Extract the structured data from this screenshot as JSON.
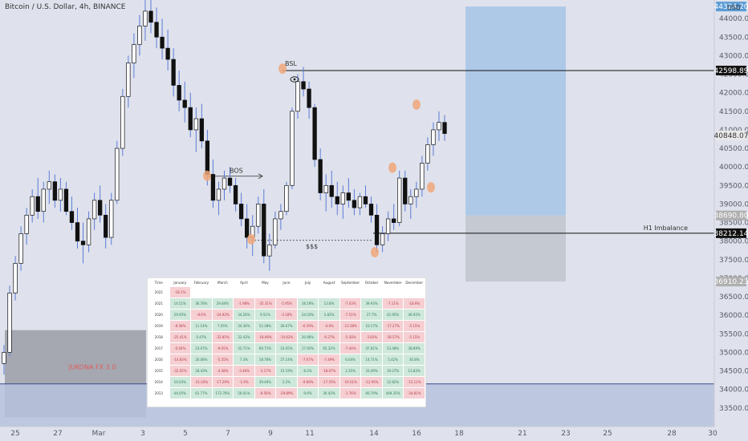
{
  "header": {
    "title": "Bitcoin / U.S. Dollar, 4h, BINANCE",
    "currency": "USD"
  },
  "watermark": "JUKONA FX 3.0",
  "chart_data": {
    "type": "candlestick",
    "ylim": [
      33000,
      44500
    ],
    "x_ticks": [
      "25",
      "27",
      "Mar",
      "3",
      "5",
      "7",
      "9",
      "11",
      "14",
      "16",
      "18",
      "21",
      "23",
      "25",
      "28",
      "30"
    ],
    "y_ticks": [
      33500,
      34000,
      34500,
      35000,
      35500,
      36000,
      36500,
      37000,
      37500,
      38000,
      38500,
      39000,
      39500,
      40000,
      40500,
      41000,
      41500,
      42000,
      42500,
      43000,
      43500,
      44000
    ],
    "price_badges": [
      {
        "value": "44324.20",
        "color": "#5b9bd5"
      },
      {
        "value": "42598.89",
        "color": "#111111"
      },
      {
        "value": "40848.07",
        "color": "#e8e8e8"
      },
      {
        "value": "38690.80",
        "color": "#b0b0b0"
      },
      {
        "value": "38212.14",
        "color": "#111111"
      },
      {
        "value": "36910.23",
        "color": "#b0b0b0"
      }
    ],
    "annotations": {
      "bsl": "BSL",
      "bos": "BOS",
      "sss": "$$$",
      "h1_imbalance": "H1 Imbalance"
    },
    "levels": {
      "bsl_line": 42598.89,
      "imbalance_line": 38212.14,
      "sss_line": 38020,
      "bos_level": 39750
    },
    "zones": [
      {
        "name": "target-zone",
        "from": 38690.8,
        "to": 44324.2,
        "color": "#a9c7e8"
      },
      {
        "name": "stop-zone",
        "from": 36910.23,
        "to": 38690.8,
        "color": "#c2c6cf"
      },
      {
        "name": "demand-zone",
        "from": 33250,
        "to": 35600,
        "color": "#9ea2ab"
      }
    ],
    "candles": [
      [
        34700,
        35200,
        34400,
        35000
      ],
      [
        35000,
        36800,
        34900,
        36600
      ],
      [
        36600,
        37600,
        36400,
        37400
      ],
      [
        37400,
        38400,
        37200,
        38200
      ],
      [
        38200,
        38900,
        37900,
        38700
      ],
      [
        38700,
        39400,
        38500,
        39200
      ],
      [
        39200,
        39700,
        38600,
        38800
      ],
      [
        38800,
        39600,
        38500,
        39400
      ],
      [
        39400,
        39900,
        39000,
        39600
      ],
      [
        39600,
        39800,
        38900,
        39100
      ],
      [
        39100,
        39700,
        38800,
        39400
      ],
      [
        39400,
        39600,
        38700,
        38800
      ],
      [
        38800,
        39200,
        38300,
        38500
      ],
      [
        38500,
        38900,
        37800,
        38000
      ],
      [
        38000,
        38500,
        37400,
        37900
      ],
      [
        37900,
        38800,
        37700,
        38600
      ],
      [
        38600,
        39300,
        38300,
        39100
      ],
      [
        39100,
        39500,
        38500,
        38700
      ],
      [
        38700,
        39000,
        37800,
        38100
      ],
      [
        38100,
        39300,
        37900,
        39100
      ],
      [
        39100,
        40700,
        39000,
        40500
      ],
      [
        40500,
        42100,
        40300,
        41900
      ],
      [
        41900,
        43000,
        41600,
        42800
      ],
      [
        42800,
        43600,
        42400,
        43300
      ],
      [
        43300,
        44100,
        43000,
        43800
      ],
      [
        43800,
        44500,
        43400,
        44200
      ],
      [
        44200,
        44500,
        43600,
        43900
      ],
      [
        43900,
        44300,
        43200,
        43500
      ],
      [
        43500,
        44000,
        42900,
        43200
      ],
      [
        43200,
        43700,
        42600,
        42900
      ],
      [
        42900,
        43200,
        41900,
        42200
      ],
      [
        42200,
        42600,
        41500,
        41800
      ],
      [
        41800,
        42300,
        41200,
        41600
      ],
      [
        41600,
        42000,
        40800,
        41000
      ],
      [
        41000,
        41600,
        40400,
        41300
      ],
      [
        41300,
        41700,
        40500,
        40700
      ],
      [
        40700,
        41000,
        39500,
        39800
      ],
      [
        39800,
        40200,
        38900,
        39100
      ],
      [
        39100,
        39600,
        38700,
        39400
      ],
      [
        39400,
        39900,
        39100,
        39700
      ],
      [
        39700,
        40000,
        39300,
        39500
      ],
      [
        39500,
        39700,
        38800,
        39000
      ],
      [
        39000,
        39300,
        38400,
        38600
      ],
      [
        38600,
        39000,
        37800,
        38100
      ],
      [
        38100,
        38700,
        37600,
        38400
      ],
      [
        38400,
        39200,
        38200,
        39000
      ],
      [
        39000,
        39400,
        37400,
        37600
      ],
      [
        37600,
        38200,
        37200,
        37900
      ],
      [
        37900,
        38800,
        37800,
        38600
      ],
      [
        38600,
        39000,
        38300,
        38800
      ],
      [
        38800,
        39600,
        38700,
        39500
      ],
      [
        39500,
        41600,
        39400,
        41500
      ],
      [
        41500,
        42500,
        41300,
        42300
      ],
      [
        42300,
        42700,
        41900,
        42100
      ],
      [
        42100,
        42300,
        41300,
        41600
      ],
      [
        41600,
        41700,
        40000,
        40200
      ],
      [
        40200,
        40500,
        39100,
        39300
      ],
      [
        39300,
        39800,
        38800,
        39500
      ],
      [
        39500,
        39900,
        38900,
        39200
      ],
      [
        39200,
        39600,
        38700,
        39000
      ],
      [
        39000,
        39500,
        38600,
        39300
      ],
      [
        39300,
        39700,
        38900,
        39100
      ],
      [
        39100,
        39400,
        38700,
        38900
      ],
      [
        38900,
        39300,
        38700,
        39200
      ],
      [
        39200,
        39500,
        38900,
        39000
      ],
      [
        39000,
        39200,
        38500,
        38700
      ],
      [
        38700,
        39000,
        37700,
        37900
      ],
      [
        37900,
        38400,
        37700,
        38200
      ],
      [
        38200,
        38800,
        38000,
        38600
      ],
      [
        38600,
        39000,
        38300,
        38500
      ],
      [
        38500,
        39900,
        38400,
        39700
      ],
      [
        39700,
        39900,
        38800,
        39000
      ],
      [
        39000,
        39400,
        38600,
        39200
      ],
      [
        39200,
        39600,
        38900,
        39400
      ],
      [
        39400,
        40300,
        39200,
        40100
      ],
      [
        40100,
        40800,
        39900,
        40600
      ],
      [
        40600,
        41200,
        40300,
        41000
      ],
      [
        41000,
        41500,
        40700,
        41200
      ],
      [
        41200,
        41400,
        40700,
        40900
      ]
    ]
  },
  "returns_table": {
    "headers": [
      "Time",
      "January",
      "February",
      "March",
      "April",
      "May",
      "June",
      "July",
      "August",
      "September",
      "October",
      "November",
      "December"
    ],
    "rows": [
      [
        "2022",
        "-18.1%",
        "",
        "",
        "",
        "",
        "",
        "",
        "",
        "",
        "",
        "",
        ""
      ],
      [
        "2021",
        "14.51%",
        "36.78%",
        "29.84%",
        "-1.98%",
        "-35.31%",
        "-5.95%",
        "18.19%",
        "13.8%",
        "-7.03%",
        "39.93%",
        "-7.11%",
        "-18.9%"
      ],
      [
        "2020",
        "29.95%",
        "-8.6%",
        "-24.92%",
        "34.26%",
        "9.51%",
        "-3.18%",
        "24.03%",
        "2.83%",
        "-7.51%",
        "27.7%",
        "42.95%",
        "46.92%"
      ],
      [
        "2019",
        "-8.58%",
        "11.14%",
        "7.05%",
        "34.36%",
        "52.38%",
        "26.67%",
        "-6.59%",
        "-4.6%",
        "-13.38%",
        "10.17%",
        "-17.27%",
        "-5.15%"
      ],
      [
        "2018",
        "-25.41%",
        "0.47%",
        "-32.85%",
        "33.43%",
        "-18.99%",
        "-14.62%",
        "20.96%",
        "-9.27%",
        "-5.58%",
        "-3.83%",
        "-36.57%",
        "-5.15%"
      ],
      [
        "2017",
        "-0.04%",
        "23.07%",
        "-9.05%",
        "32.71%",
        "69.71%",
        "10.45%",
        "17.92%",
        "65.32%",
        "-7.44%",
        "47.81%",
        "53.48%",
        "38.89%"
      ],
      [
        "2016",
        "-14.83%",
        "20.08%",
        "-5.35%",
        "7.3%",
        "18.78%",
        "27.14%",
        "-7.67%",
        "-7.49%",
        "6.04%",
        "14.71%",
        "5.42%",
        "30.8%"
      ],
      [
        "2015",
        "-32.05%",
        "18.43%",
        "-4.38%",
        "-3.46%",
        "-3.17%",
        "15.19%",
        "8.2%",
        "-18.67%",
        "2.35%",
        "33.49%",
        "19.27%",
        "13.83%"
      ],
      [
        "2014",
        "10.03%",
        "-31.03%",
        "-17.29%",
        "-1.6%",
        "39.46%",
        "2.2%",
        "-9.69%",
        "-17.55%",
        "-19.01%",
        "-12.95%",
        "12.82%",
        "-15.11%"
      ],
      [
        "2013",
        "44.05%",
        "61.77%",
        "172.76%",
        "50.01%",
        "-8.56%",
        "-29.89%",
        "9.6%",
        "30.42%",
        "-1.76%",
        "60.79%",
        "449.35%",
        "-34.81%"
      ]
    ]
  }
}
